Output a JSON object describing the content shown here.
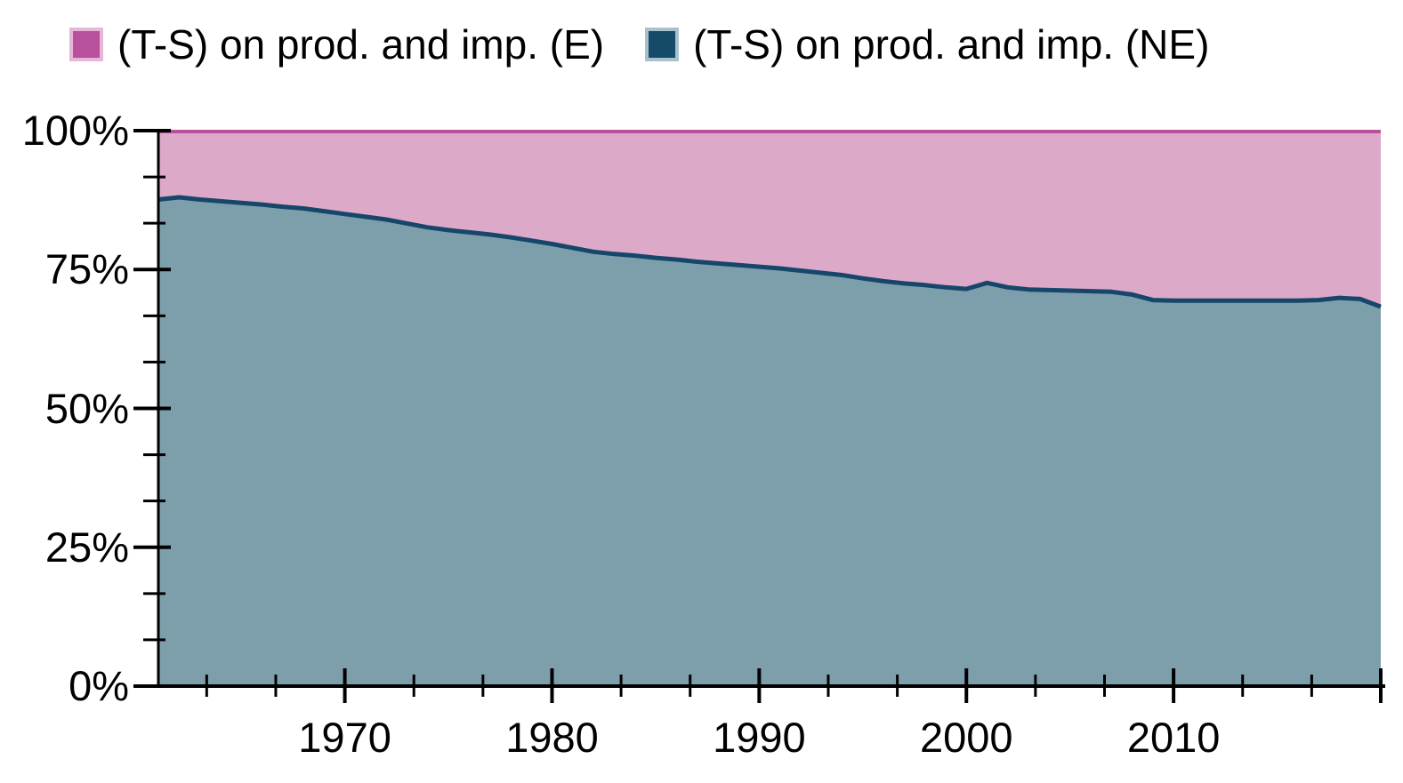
{
  "legend": {
    "items": [
      {
        "label": "(T-S) on prod. and imp. (E)",
        "color": "#b9509b",
        "swatch_border": "#e6b7d7"
      },
      {
        "label": "(T-S) on prod. and imp. (NE)",
        "color": "#154a68",
        "swatch_border": "#a9c1cc"
      }
    ]
  },
  "chart_data": {
    "type": "area",
    "stacked_percent": true,
    "title": "",
    "xlabel": "",
    "ylabel": "",
    "ylim": [
      0,
      100
    ],
    "x_range": [
      1961,
      2020
    ],
    "grid": false,
    "legend_position": "top",
    "years": [
      1961,
      1962,
      1963,
      1964,
      1965,
      1966,
      1967,
      1968,
      1969,
      1970,
      1971,
      1972,
      1973,
      1974,
      1975,
      1976,
      1977,
      1978,
      1979,
      1980,
      1981,
      1982,
      1983,
      1984,
      1985,
      1986,
      1987,
      1988,
      1989,
      1990,
      1991,
      1992,
      1993,
      1994,
      1995,
      1996,
      1997,
      1998,
      1999,
      2000,
      2001,
      2002,
      2003,
      2004,
      2005,
      2006,
      2007,
      2008,
      2009,
      2010,
      2011,
      2012,
      2013,
      2014,
      2015,
      2016,
      2017,
      2018,
      2019,
      2020
    ],
    "series": [
      {
        "name": "(T-S) on prod. and imp. (E)",
        "role": "top",
        "line_color": "#b9509b",
        "fill_color": "#dda9c9",
        "values": [
          12.4,
          12.0,
          12.4,
          12.7,
          13.0,
          13.3,
          13.7,
          14.0,
          14.5,
          15.0,
          15.5,
          16.0,
          16.7,
          17.4,
          17.9,
          18.3,
          18.7,
          19.2,
          19.8,
          20.4,
          21.1,
          21.8,
          22.2,
          22.5,
          22.9,
          23.2,
          23.6,
          23.9,
          24.2,
          24.5,
          24.8,
          25.2,
          25.6,
          26.0,
          26.6,
          27.1,
          27.5,
          27.8,
          28.2,
          28.5,
          27.4,
          28.2,
          28.6,
          28.7,
          28.8,
          28.9,
          29.0,
          29.5,
          30.5,
          30.6,
          30.6,
          30.6,
          30.6,
          30.6,
          30.6,
          30.6,
          30.5,
          30.1,
          30.3,
          31.7
        ]
      },
      {
        "name": "(T-S) on prod. and imp. (NE)",
        "role": "bottom",
        "line_color": "#16476a",
        "fill_color": "#7d9fac",
        "values": [
          87.6,
          88.0,
          87.6,
          87.3,
          87.0,
          86.7,
          86.3,
          86.0,
          85.5,
          85.0,
          84.5,
          84.0,
          83.3,
          82.6,
          82.1,
          81.7,
          81.3,
          80.8,
          80.2,
          79.6,
          78.9,
          78.2,
          77.8,
          77.5,
          77.1,
          76.8,
          76.4,
          76.1,
          75.8,
          75.5,
          75.2,
          74.8,
          74.4,
          74.0,
          73.4,
          72.9,
          72.5,
          72.2,
          71.8,
          71.5,
          72.6,
          71.8,
          71.4,
          71.3,
          71.2,
          71.1,
          71.0,
          70.5,
          69.5,
          69.4,
          69.4,
          69.4,
          69.4,
          69.4,
          69.4,
          69.4,
          69.5,
          69.9,
          69.7,
          68.3
        ]
      }
    ],
    "y_axis": {
      "tick_labels": [
        "100%",
        "75%",
        "50%",
        "25%",
        "0%"
      ],
      "tick_values": [
        100,
        75,
        50,
        25,
        0
      ],
      "minor_divisions_per_major": 3
    },
    "x_axis": {
      "tick_labels": [
        "1970",
        "1980",
        "1990",
        "2000",
        "2010"
      ],
      "tick_values": [
        1970,
        1980,
        1990,
        2000,
        2010
      ],
      "minor_divisions_per_major": 3
    },
    "axis_color": "#000000"
  }
}
